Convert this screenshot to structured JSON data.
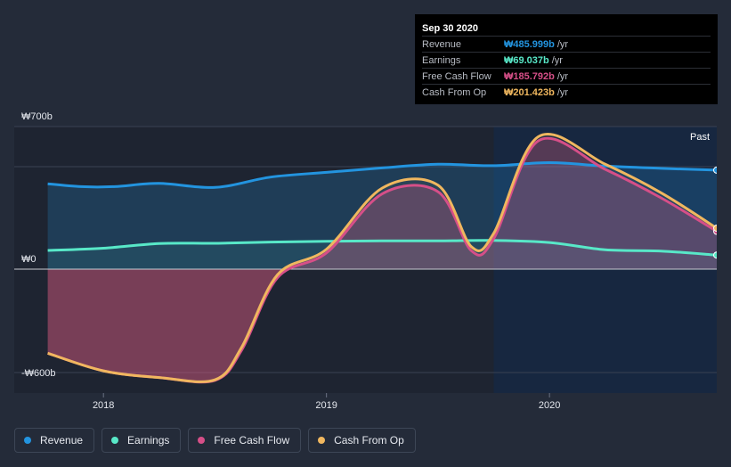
{
  "chart_data": {
    "type": "area",
    "currency": "₩",
    "unit": "b",
    "ylim": [
      -600,
      700
    ],
    "y_ticks": [
      {
        "value": 700,
        "label": "₩700b"
      },
      {
        "value": 0,
        "label": "₩0"
      },
      {
        "value": -600,
        "label": "-₩600b"
      }
    ],
    "x_ticks": [
      {
        "value": 2018.0,
        "label": "2018"
      },
      {
        "value": 2019.0,
        "label": "2019"
      },
      {
        "value": 2020.0,
        "label": "2020"
      }
    ],
    "xlim": [
      2017.6,
      2020.75
    ],
    "past_start": 2019.75,
    "past_label": "Past",
    "series": [
      {
        "name": "Revenue",
        "key": "revenue",
        "color": "#2394df",
        "x": [
          2017.75,
          2017.9,
          2018.05,
          2018.25,
          2018.5,
          2018.75,
          2019.0,
          2019.25,
          2019.5,
          2019.75,
          2020.0,
          2020.25,
          2020.5,
          2020.75
        ],
        "values": [
          419,
          405,
          405,
          421,
          401,
          452,
          475,
          497,
          515,
          508,
          523,
          506,
          495,
          486
        ]
      },
      {
        "name": "Earnings",
        "key": "earnings",
        "color": "#58e8c8",
        "x": [
          2017.75,
          2018.0,
          2018.25,
          2018.5,
          2018.75,
          2019.0,
          2019.25,
          2019.5,
          2019.75,
          2020.0,
          2020.25,
          2020.5,
          2020.75
        ],
        "values": [
          92,
          103,
          126,
          127,
          133,
          137,
          139,
          139,
          141,
          131,
          95,
          89,
          69
        ]
      },
      {
        "name": "Free Cash Flow",
        "key": "fcf",
        "color": "#d64f88",
        "x": [
          2017.75,
          2018.0,
          2018.25,
          2018.5,
          2018.62,
          2018.78,
          2019.0,
          2019.25,
          2019.5,
          2019.65,
          2019.75,
          2019.95,
          2020.25,
          2020.5,
          2020.75
        ],
        "values": [
          -442,
          -535,
          -570,
          -585,
          -425,
          -45,
          80,
          370,
          380,
          90,
          150,
          630,
          490,
          350,
          186
        ]
      },
      {
        "name": "Cash From Op",
        "key": "cfo",
        "color": "#f0b75f",
        "x": [
          2017.75,
          2018.0,
          2018.25,
          2018.5,
          2018.62,
          2018.78,
          2019.0,
          2019.25,
          2019.5,
          2019.65,
          2019.75,
          2019.95,
          2020.25,
          2020.5,
          2020.75
        ],
        "values": [
          -442,
          -535,
          -570,
          -582,
          -410,
          -30,
          98,
          398,
          412,
          110,
          176,
          650,
          515,
          375,
          201
        ]
      }
    ]
  },
  "tooltip": {
    "date": "Sep 30 2020",
    "rows": [
      {
        "label": "Revenue",
        "value": "₩485.999b",
        "unit": "/yr",
        "color": "#2394df"
      },
      {
        "label": "Earnings",
        "value": "₩69.037b",
        "unit": "/yr",
        "color": "#58e8c8"
      },
      {
        "label": "Free Cash Flow",
        "value": "₩185.792b",
        "unit": "/yr",
        "color": "#d64f88"
      },
      {
        "label": "Cash From Op",
        "value": "₩201.423b",
        "unit": "/yr",
        "color": "#f0b75f"
      }
    ]
  },
  "legend": [
    {
      "label": "Revenue",
      "color": "#2394df"
    },
    {
      "label": "Earnings",
      "color": "#58e8c8"
    },
    {
      "label": "Free Cash Flow",
      "color": "#d64f88"
    },
    {
      "label": "Cash From Op",
      "color": "#f0b75f"
    }
  ]
}
